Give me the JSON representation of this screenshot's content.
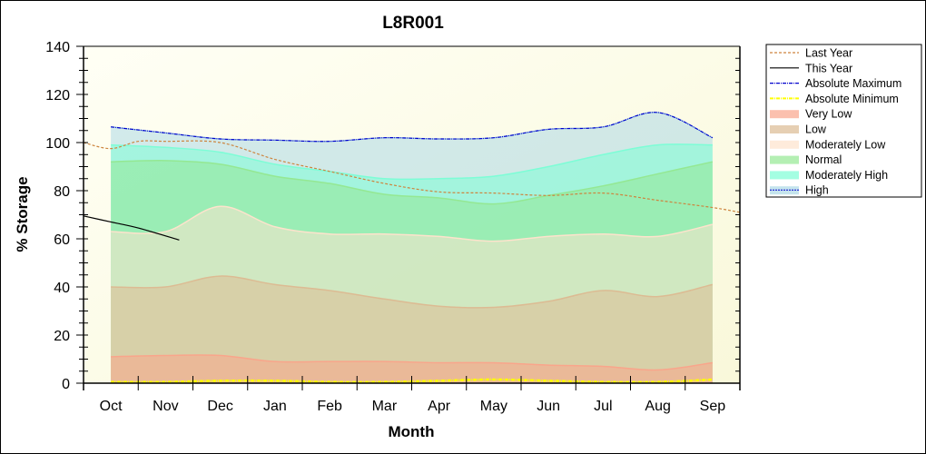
{
  "chart_data": {
    "type": "area",
    "title": "L8R001",
    "xlabel": "Month",
    "ylabel": "% Storage",
    "ylim": [
      0,
      140
    ],
    "yticks": [
      0,
      20,
      40,
      60,
      80,
      100,
      120,
      140
    ],
    "categories": [
      "Oct",
      "Nov",
      "Dec",
      "Jan",
      "Feb",
      "Mar",
      "Apr",
      "May",
      "Jun",
      "Jul",
      "Aug",
      "Sep"
    ],
    "grid": false,
    "legend_position": "right",
    "bands": [
      {
        "name": "Very Low",
        "color": "#f9a58b",
        "top": [
          11,
          11.5,
          11.5,
          9,
          9,
          9,
          8.5,
          8.5,
          7.5,
          7,
          5.5,
          8.5
        ]
      },
      {
        "name": "Low",
        "color": "#dcbb93",
        "top": [
          40,
          40,
          44.5,
          41,
          38.5,
          35,
          32,
          31.5,
          34,
          38.5,
          36,
          41
        ]
      },
      {
        "name": "Moderately Low",
        "color": "#fde3cc",
        "top": [
          63,
          63,
          73.5,
          65,
          62,
          62,
          61,
          59,
          61,
          62,
          61,
          66
        ]
      },
      {
        "name": "Normal",
        "color": "#94e893",
        "top": [
          92,
          92.5,
          91,
          86,
          83,
          78.5,
          77,
          74.5,
          78,
          82,
          87,
          92
        ]
      },
      {
        "name": "Moderately High",
        "color": "#7dfdd6",
        "top": [
          99,
          98,
          96,
          91,
          88,
          85,
          85,
          86,
          90,
          95,
          99,
          99
        ]
      },
      {
        "name": "High",
        "color": "#add8e6",
        "top": [
          106.5,
          104,
          101.5,
          101,
          100.5,
          102,
          101.5,
          102,
          105.5,
          106.5,
          112.5,
          102
        ]
      }
    ],
    "series": [
      {
        "name": "Last Year",
        "color": "#cd853f",
        "style": "dashed",
        "x": [
          -0.5,
          0,
          0.5,
          1,
          2,
          3,
          4,
          5,
          6,
          7,
          8,
          9,
          10,
          11,
          11.5
        ],
        "values": [
          100,
          97.5,
          100.5,
          100.5,
          100,
          93,
          88,
          83,
          79.5,
          79,
          78,
          79,
          76,
          73,
          71
        ]
      },
      {
        "name": "This Year",
        "color": "#000000",
        "style": "solid",
        "x": [
          -0.5,
          0,
          0.5,
          1.25
        ],
        "values": [
          69.5,
          67,
          64.5,
          59.5
        ]
      },
      {
        "name": "Absolute Maximum",
        "color": "#0000cd",
        "style": "dashdot",
        "x": [
          0,
          1,
          2,
          3,
          4,
          5,
          6,
          7,
          8,
          9,
          10,
          11
        ],
        "values": [
          106.5,
          104,
          101.5,
          101,
          100.5,
          102,
          101.5,
          102,
          105.5,
          106.5,
          112.5,
          102
        ]
      },
      {
        "name": "Absolute Minimum",
        "color": "#ffff00",
        "style": "dashdot",
        "x": [
          0,
          1,
          2,
          3,
          4,
          5,
          6,
          7,
          8,
          9,
          10,
          11
        ],
        "values": [
          0.5,
          0.5,
          1,
          1,
          0.5,
          0.5,
          1,
          1.5,
          1,
          0.5,
          0.5,
          1.5
        ]
      }
    ],
    "legend": [
      "Last Year",
      "This Year",
      "Absolute Maximum",
      "Absolute Minimum",
      "Very Low",
      "Low",
      "Moderately Low",
      "Normal",
      "Moderately High",
      "High"
    ]
  }
}
